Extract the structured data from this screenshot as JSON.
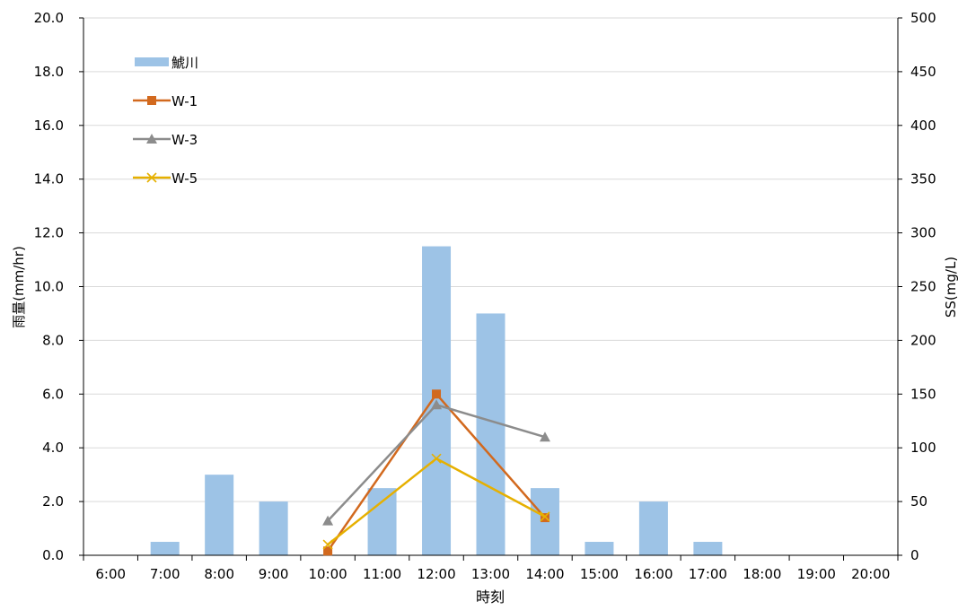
{
  "chart_data": {
    "type": "bar",
    "categories": [
      "6:00",
      "7:00",
      "8:00",
      "9:00",
      "10:00",
      "11:00",
      "12:00",
      "13:00",
      "14:00",
      "15:00",
      "16:00",
      "17:00",
      "18:00",
      "19:00",
      "20:00"
    ],
    "xlabel": "時刻",
    "ylabel": "雨量(mm/hr)",
    "y2label": "SS(mg/L)",
    "ylim": [
      0,
      20
    ],
    "y2lim": [
      0,
      500
    ],
    "yticks": [
      "0.0",
      "2.0",
      "4.0",
      "6.0",
      "8.0",
      "10.0",
      "12.0",
      "14.0",
      "16.0",
      "18.0",
      "20.0"
    ],
    "y2ticks": [
      "0",
      "50",
      "100",
      "150",
      "200",
      "250",
      "300",
      "350",
      "400",
      "450",
      "500"
    ],
    "grid": true,
    "legend_position": "top-left",
    "bar_series": {
      "name": "鯱川",
      "color": "#9DC3E6",
      "values": [
        0,
        0.5,
        3.0,
        2.0,
        0,
        2.5,
        11.5,
        9.0,
        2.5,
        0.5,
        2.0,
        0.5,
        0,
        0,
        0
      ]
    },
    "line_series": [
      {
        "name": "W-1",
        "color": "#D2691E",
        "marker": "square",
        "points": [
          {
            "x": "10:00",
            "y": 4
          },
          {
            "x": "12:00",
            "y": 150
          },
          {
            "x": "14:00",
            "y": 35
          }
        ]
      },
      {
        "name": "W-3",
        "color": "#8C8C8C",
        "marker": "triangle",
        "points": [
          {
            "x": "10:00",
            "y": 32
          },
          {
            "x": "12:00",
            "y": 140
          },
          {
            "x": "14:00",
            "y": 110
          }
        ]
      },
      {
        "name": "W-5",
        "color": "#E6B000",
        "marker": "x",
        "points": [
          {
            "x": "10:00",
            "y": 10
          },
          {
            "x": "12:00",
            "y": 90
          },
          {
            "x": "14:00",
            "y": 36
          }
        ]
      }
    ]
  }
}
